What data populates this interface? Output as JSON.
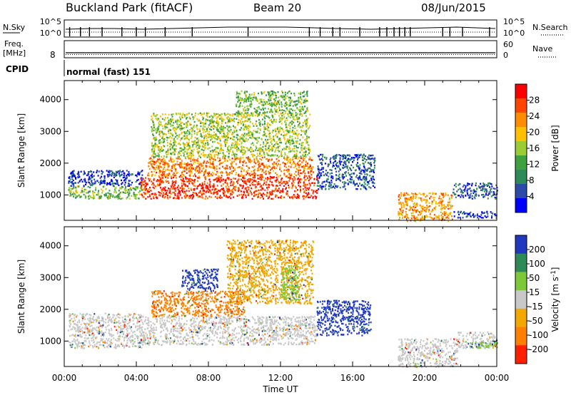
{
  "header": {
    "station": "Buckland Park (fitACF)",
    "beam": "Beam 20",
    "date": "08/Jun/2015"
  },
  "nsky_panel": {
    "left_label": "N.Sky",
    "right_label": "N.Search",
    "left_ticks": [
      "10^5",
      "10^0"
    ],
    "right_ticks": [
      "10^5",
      "10^0"
    ]
  },
  "freq_panel": {
    "left_label_line1": "Freq.",
    "left_label_line2": "[MHz]",
    "left_tick": "8",
    "right_label": "Nave",
    "right_ticks": [
      "60",
      "0"
    ]
  },
  "cpid": {
    "label": "CPID",
    "value": "normal (fast) 151"
  },
  "colors": {
    "power": [
      "#0000ff",
      "#2e4aa8",
      "#2e8b57",
      "#3ea03e",
      "#9acd32",
      "#ffc000",
      "#ff8c00",
      "#ff4500",
      "#ff0000"
    ],
    "velocity": [
      "#2038c0",
      "#2e8b57",
      "#7cc838",
      "#c8c8c8",
      "#f2a800",
      "#ff8000",
      "#ff2000"
    ]
  },
  "chart_data": [
    {
      "type": "heatmap",
      "title": "",
      "ylabel": "Slant Range [km]",
      "xlabel": "",
      "y_ticks": [
        "1000",
        "2000",
        "3000",
        "4000"
      ],
      "x_range_hours": [
        0,
        24
      ],
      "ylim": [
        200,
        4600
      ],
      "colorbar": {
        "label": "Power [dB]",
        "ticks": [
          "4",
          "8",
          "12",
          "16",
          "20",
          "24",
          "28"
        ],
        "range": [
          0,
          32
        ]
      },
      "features": [
        {
          "t0": 0.2,
          "t1": 4.3,
          "r0": 900,
          "r1": 1300,
          "value": 14
        },
        {
          "t0": 0.2,
          "t1": 4.3,
          "r0": 1300,
          "r1": 1800,
          "value": 4
        },
        {
          "t0": 4.2,
          "t1": 14.0,
          "r0": 900,
          "r1": 1600,
          "value": 28
        },
        {
          "t0": 4.6,
          "t1": 13.8,
          "r0": 1600,
          "r1": 2200,
          "value": 24
        },
        {
          "t0": 4.8,
          "t1": 13.6,
          "r0": 2200,
          "r1": 3600,
          "value": 16
        },
        {
          "t0": 9.5,
          "t1": 13.5,
          "r0": 3600,
          "r1": 4300,
          "value": 14
        },
        {
          "t0": 14.0,
          "t1": 17.2,
          "r0": 1200,
          "r1": 2300,
          "value": 6
        },
        {
          "t0": 18.5,
          "t1": 21.5,
          "r0": 200,
          "r1": 1100,
          "value": 22
        },
        {
          "t0": 21.5,
          "t1": 24.0,
          "r0": 900,
          "r1": 1400,
          "value": 6
        },
        {
          "t0": 21.5,
          "t1": 24.0,
          "r0": 300,
          "r1": 500,
          "value": 4
        }
      ]
    },
    {
      "type": "heatmap",
      "title": "",
      "ylabel": "Slant Range [km]",
      "xlabel": "Time UT",
      "y_ticks": [
        "1000",
        "2000",
        "3000",
        "4000"
      ],
      "x_ticks": [
        "00:00",
        "04:00",
        "08:00",
        "12:00",
        "16:00",
        "20:00",
        "00:00"
      ],
      "x_range_hours": [
        0,
        24
      ],
      "ylim": [
        200,
        4600
      ],
      "colorbar": {
        "label": "Velocity [m s^-1]",
        "ticks": [
          "200",
          "100",
          "50",
          "15",
          "-15",
          "-50",
          "-100",
          "-200"
        ],
        "range": [
          -250,
          250
        ]
      },
      "features": [
        {
          "t0": 0.2,
          "t1": 4.3,
          "r0": 800,
          "r1": 1900,
          "value": 0
        },
        {
          "t0": 4.2,
          "t1": 14.0,
          "r0": 900,
          "r1": 1800,
          "value": 0
        },
        {
          "t0": 4.8,
          "t1": 10.0,
          "r0": 1800,
          "r1": 2600,
          "value": -60
        },
        {
          "t0": 6.5,
          "t1": 8.5,
          "r0": 2600,
          "r1": 3300,
          "value": 150
        },
        {
          "t0": 9.0,
          "t1": 13.8,
          "r0": 2200,
          "r1": 4200,
          "value": -40
        },
        {
          "t0": 12.0,
          "t1": 13.0,
          "r0": 2300,
          "r1": 3400,
          "value": 40
        },
        {
          "t0": 14.0,
          "t1": 17.0,
          "r0": 1200,
          "r1": 2300,
          "value": 150
        },
        {
          "t0": 18.5,
          "t1": 21.8,
          "r0": 200,
          "r1": 1100,
          "value": 0
        },
        {
          "t0": 21.8,
          "t1": 24.0,
          "r0": 800,
          "r1": 1300,
          "value": 0
        },
        {
          "t0": 22.5,
          "t1": 24.0,
          "r0": 800,
          "r1": 1000,
          "value": 30
        }
      ]
    }
  ]
}
